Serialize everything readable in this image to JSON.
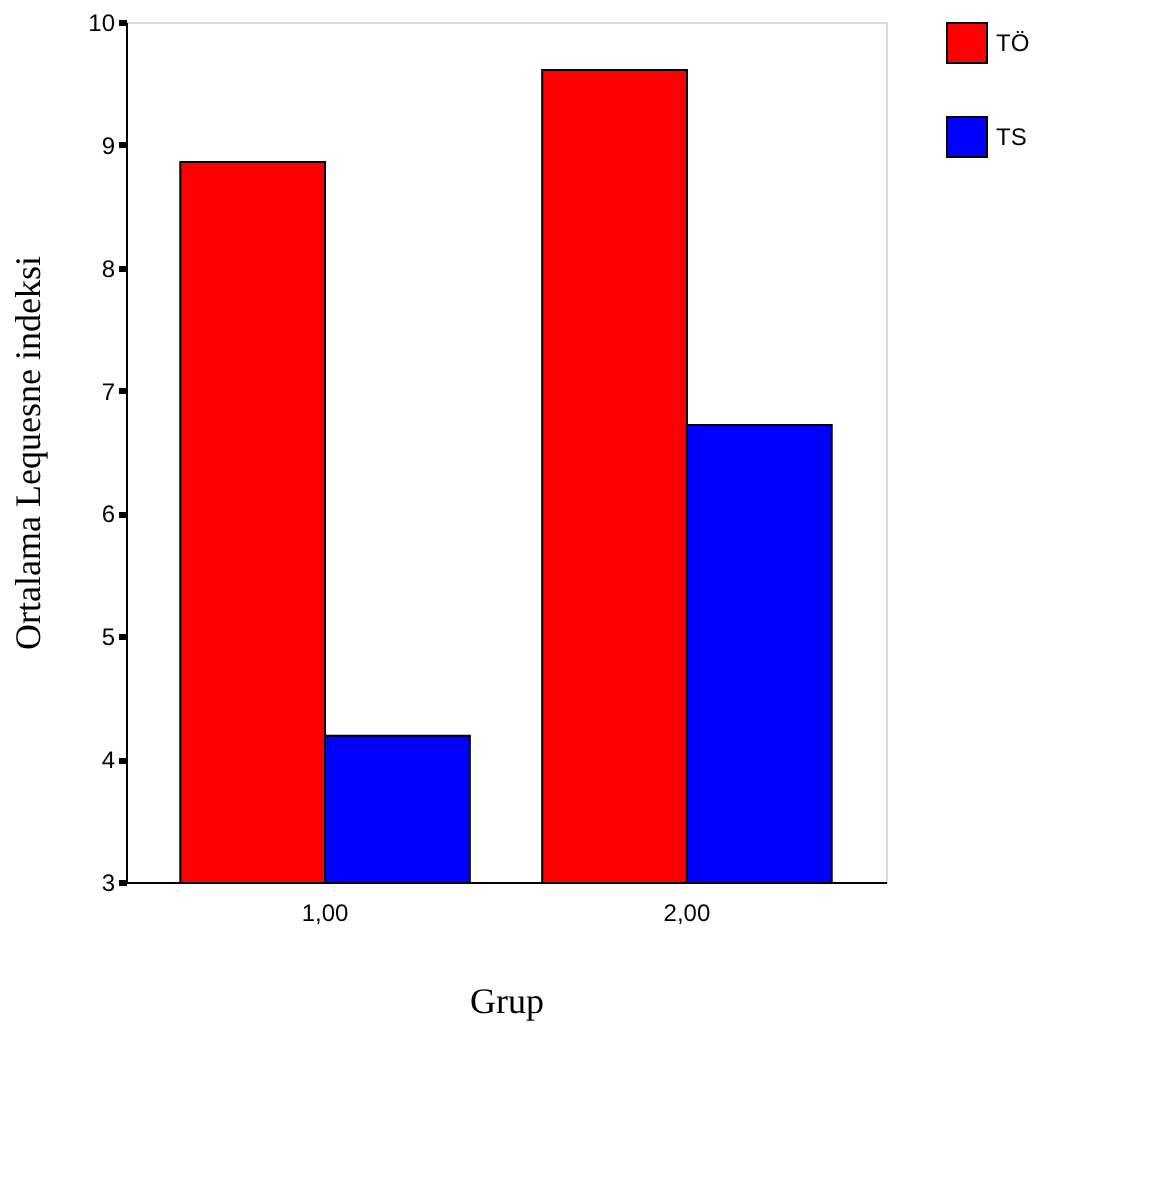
{
  "chart_data": {
    "type": "bar",
    "xlabel": "Grup",
    "ylabel": "Ortalama Lequesne indeksi",
    "categories": [
      "1,00",
      "2,00"
    ],
    "series": [
      {
        "name": "TÖ",
        "color": "#ff0000",
        "values": [
          8.86,
          9.61
        ]
      },
      {
        "name": "TS",
        "color": "#0000ff",
        "values": [
          4.19,
          6.72
        ]
      }
    ],
    "ylim": [
      3,
      10
    ],
    "yticks": [
      3,
      4,
      5,
      6,
      7,
      8,
      9,
      10
    ],
    "grid": false,
    "legend": "right"
  }
}
